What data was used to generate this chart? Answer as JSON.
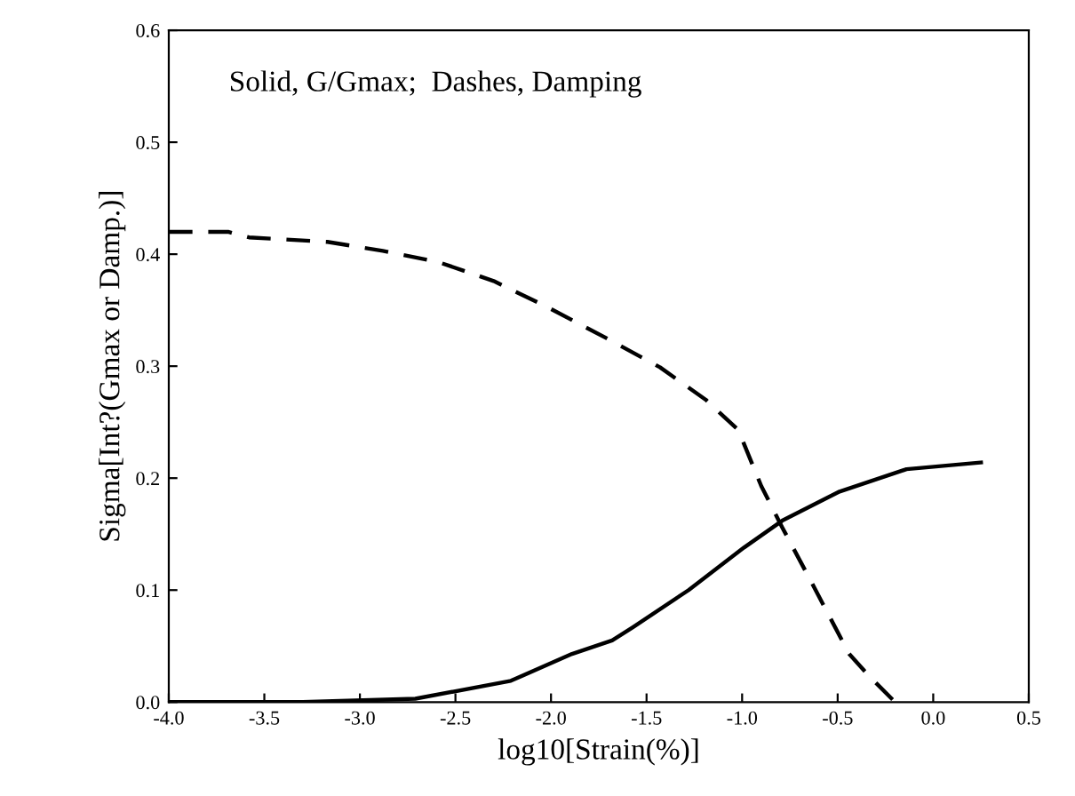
{
  "chart_data": {
    "type": "line",
    "xlabel": "log10[Strain(%)]",
    "ylabel": "Sigma[Int?(Gmax or Damp.)]",
    "annotations": [
      "Solid, G/Gmax;  Dashes, Damping"
    ],
    "xlim": [
      -4.0,
      0.5
    ],
    "xticks": [
      {
        "value": -4,
        "label": "-4.0"
      },
      -3.5,
      {
        "value": -3,
        "label": "-3.0"
      },
      -2.5,
      {
        "value": -2,
        "label": "-2.0"
      },
      -1.5,
      {
        "value": -1,
        "label": "-1.0"
      },
      -0.5,
      {
        "value": 0,
        "label": "0.0"
      },
      0.5
    ],
    "ylim": [
      0.0,
      0.6
    ],
    "yticks": [
      {
        "value": 0,
        "label": "0.0"
      },
      0.1,
      0.2,
      0.3,
      0.4,
      0.5,
      0.6
    ],
    "grid": false,
    "legend": false,
    "marker": "none",
    "series": [
      {
        "color": "#000000",
        "line_style": "solid",
        "x": [
          -4.0,
          -3.3,
          -2.71,
          -2.21,
          -1.89,
          -1.68,
          -1.57,
          -1.28,
          -0.99,
          -0.79,
          -0.49,
          -0.14,
          0.25
        ],
        "values": [
          0.0,
          0.0,
          0.003,
          0.019,
          0.043,
          0.055,
          0.067,
          0.1,
          0.138,
          0.162,
          0.188,
          0.208,
          0.214
        ]
      },
      {
        "color": "#000000",
        "line_style": "dashed",
        "x": [
          -4.0,
          -3.69,
          -3.58,
          -3.17,
          -2.88,
          -2.59,
          -2.3,
          -2.01,
          -1.71,
          -1.43,
          -1.19,
          -1.02,
          -0.9,
          -0.79,
          -0.64,
          -0.44,
          -0.34,
          -0.2
        ],
        "values": [
          0.42,
          0.42,
          0.415,
          0.411,
          0.403,
          0.393,
          0.376,
          0.352,
          0.325,
          0.299,
          0.27,
          0.243,
          0.193,
          0.156,
          0.108,
          0.043,
          0.024,
          0.0
        ]
      }
    ]
  }
}
